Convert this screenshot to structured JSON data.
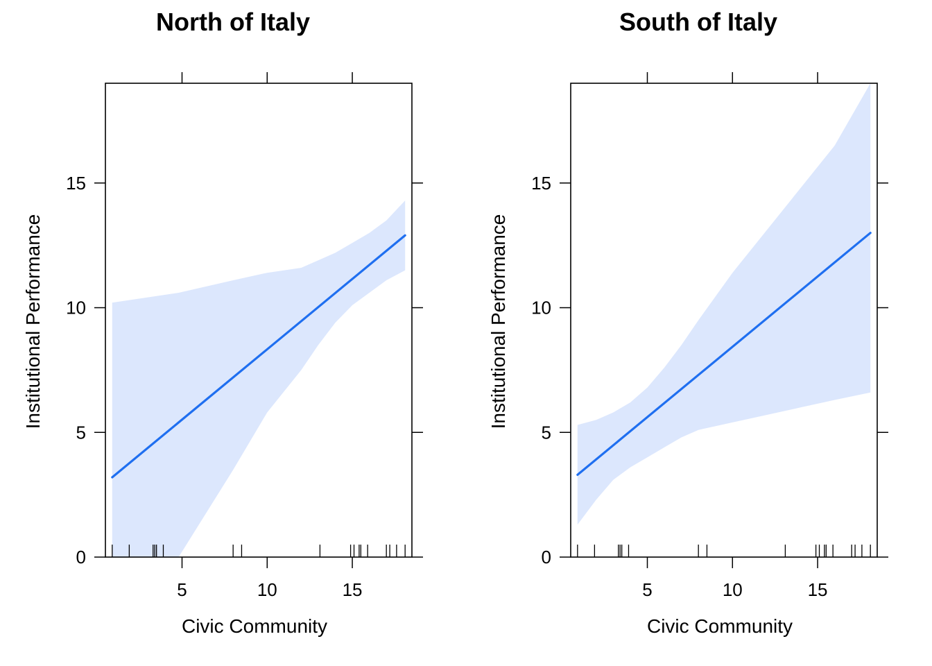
{
  "chart_data": [
    {
      "type": "line",
      "title": "North of Italy",
      "xlabel": "Civic Community",
      "ylabel": "Institutional Performance",
      "xlim": [
        0.5,
        18.5
      ],
      "ylim": [
        0,
        19
      ],
      "xticks": [
        5,
        10,
        15
      ],
      "yticks": [
        0,
        5,
        10,
        15
      ],
      "grid": false,
      "series": [
        {
          "kind": "fit",
          "x": [
            0.9,
            18.1
          ],
          "y": [
            3.2,
            12.9
          ],
          "color": "#1f6ff0"
        },
        {
          "kind": "confidence-band",
          "x": [
            0.9,
            4.8,
            8,
            10,
            12,
            13,
            14,
            15,
            16,
            17,
            18.1
          ],
          "lower": [
            0,
            0,
            3.5,
            5.8,
            7.5,
            8.5,
            9.4,
            10.1,
            10.6,
            11.1,
            11.5
          ],
          "upper": [
            10.2,
            10.6,
            11.1,
            11.4,
            11.6,
            11.9,
            12.2,
            12.6,
            13.0,
            13.5,
            14.3
          ],
          "color": "#dce7fd"
        }
      ],
      "rug": [
        0.9,
        1.9,
        3.3,
        3.4,
        3.5,
        3.9,
        8.0,
        8.5,
        13.1,
        14.9,
        15.1,
        15.4,
        15.5,
        15.9,
        17.0,
        17.2,
        17.6,
        18.1
      ]
    },
    {
      "type": "line",
      "title": "South of Italy",
      "xlabel": "Civic Community",
      "ylabel": "Institutional Performance",
      "xlim": [
        0.5,
        18.5
      ],
      "ylim": [
        0,
        19
      ],
      "xticks": [
        5,
        10,
        15
      ],
      "yticks": [
        0,
        5,
        10,
        15
      ],
      "grid": false,
      "series": [
        {
          "kind": "fit",
          "x": [
            0.9,
            18.1
          ],
          "y": [
            3.3,
            13.0
          ],
          "color": "#1f6ff0"
        },
        {
          "kind": "confidence-band",
          "x": [
            0.9,
            2,
            3,
            4,
            5,
            6,
            7,
            8,
            10,
            12,
            14,
            16,
            18.1
          ],
          "lower": [
            1.3,
            2.3,
            3.1,
            3.6,
            4.0,
            4.4,
            4.8,
            5.1,
            5.4,
            5.7,
            6.0,
            6.3,
            6.6
          ],
          "upper": [
            5.3,
            5.5,
            5.8,
            6.2,
            6.8,
            7.6,
            8.5,
            9.5,
            11.4,
            13.1,
            14.8,
            16.5,
            19.0
          ],
          "color": "#dce7fd"
        }
      ],
      "rug": [
        0.9,
        1.9,
        3.3,
        3.4,
        3.5,
        3.9,
        8.0,
        8.5,
        13.1,
        14.9,
        15.1,
        15.4,
        15.5,
        15.9,
        17.0,
        17.2,
        17.6,
        18.1
      ]
    }
  ]
}
